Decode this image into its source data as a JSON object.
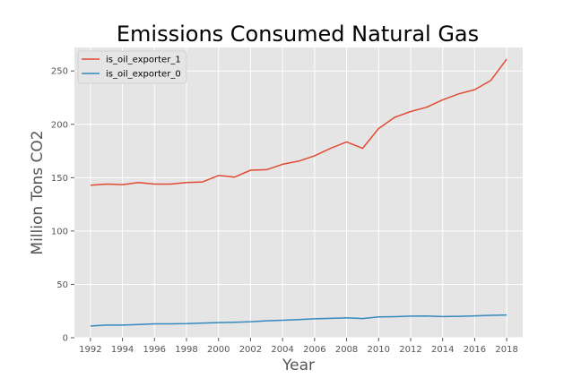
{
  "chart_data": {
    "type": "line",
    "title": "Emissions Consumed Natural Gas",
    "xlabel": "Year",
    "ylabel": "Million Tons CO2",
    "xlim": [
      1991,
      2019
    ],
    "ylim": [
      0,
      272
    ],
    "x_ticks": [
      1992,
      1994,
      1996,
      1998,
      2000,
      2002,
      2004,
      2006,
      2008,
      2010,
      2012,
      2014,
      2016,
      2018
    ],
    "y_ticks": [
      0,
      50,
      100,
      150,
      200,
      250
    ],
    "grid": true,
    "legend_position": "top-left",
    "x": [
      1992,
      1993,
      1994,
      1995,
      1996,
      1997,
      1998,
      1999,
      2000,
      2001,
      2002,
      2003,
      2004,
      2005,
      2006,
      2007,
      2008,
      2009,
      2010,
      2011,
      2012,
      2013,
      2014,
      2015,
      2016,
      2017,
      2018
    ],
    "series": [
      {
        "name": "is_oil_exporter_1",
        "color": "#E24A33",
        "values": [
          143,
          144,
          143.5,
          145.5,
          144,
          144,
          145.5,
          146,
          152,
          150.5,
          157,
          157.5,
          162.5,
          165.5,
          170.5,
          177.5,
          183.5,
          177.5,
          196,
          206.5,
          212,
          216,
          223,
          228.5,
          232.5,
          241,
          261
        ]
      },
      {
        "name": "is_oil_exporter_0",
        "color": "#348ABD",
        "values": [
          11,
          11.8,
          11.8,
          12.3,
          13,
          13,
          13.2,
          13.8,
          14.2,
          14.5,
          15,
          15.9,
          16.4,
          17,
          17.7,
          18.1,
          18.6,
          18,
          19.5,
          19.7,
          20.2,
          20.4,
          19.8,
          20.1,
          20.5,
          21,
          21.3
        ]
      }
    ]
  }
}
